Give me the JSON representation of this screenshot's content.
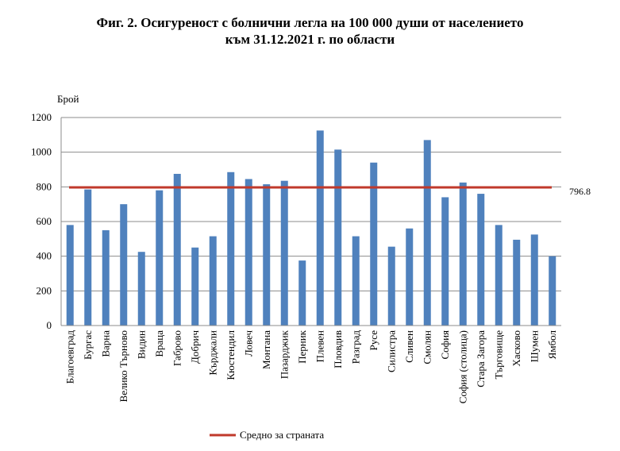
{
  "title_line1": "Фиг. 2. Осигуреност с болнични легла на 100 000 души от населението",
  "title_line2": "към 31.12.2021 г. по области",
  "chart_data": {
    "type": "bar",
    "ylabel": "Брой",
    "ylim": [
      0,
      1200
    ],
    "yticks": [
      0,
      200,
      400,
      600,
      800,
      1000,
      1200
    ],
    "grid": true,
    "categories": [
      "Благоевград",
      "Бургас",
      "Варна",
      "Велико Търново",
      "Видин",
      "Враца",
      "Габрово",
      "Добрич",
      "Кърджали",
      "Кюстендил",
      "Ловеч",
      "Монтана",
      "Пазарджик",
      "Перник",
      "Плевен",
      "Пловдив",
      "Разград",
      "Русе",
      "Силистра",
      "Сливен",
      "Смолян",
      "София",
      "София (столица)",
      "Стара Загора",
      "Търговище",
      "Хасково",
      "Шумен",
      "Ямбол"
    ],
    "series": [
      {
        "values": [
          580,
          785,
          550,
          700,
          425,
          780,
          875,
          450,
          515,
          885,
          845,
          815,
          835,
          375,
          1125,
          1015,
          515,
          940,
          455,
          560,
          1070,
          740,
          825,
          760,
          580,
          495,
          525,
          400
        ],
        "color": "#4f81bd"
      }
    ],
    "reference_line": {
      "value": 796.8,
      "label": "796.8",
      "name": "Средно за страната",
      "color": "#c0392b"
    },
    "legend_position": "bottom"
  },
  "colors": {
    "bar": "#4f81bd",
    "average": "#c0392b",
    "grid": "#8c8c8c"
  }
}
